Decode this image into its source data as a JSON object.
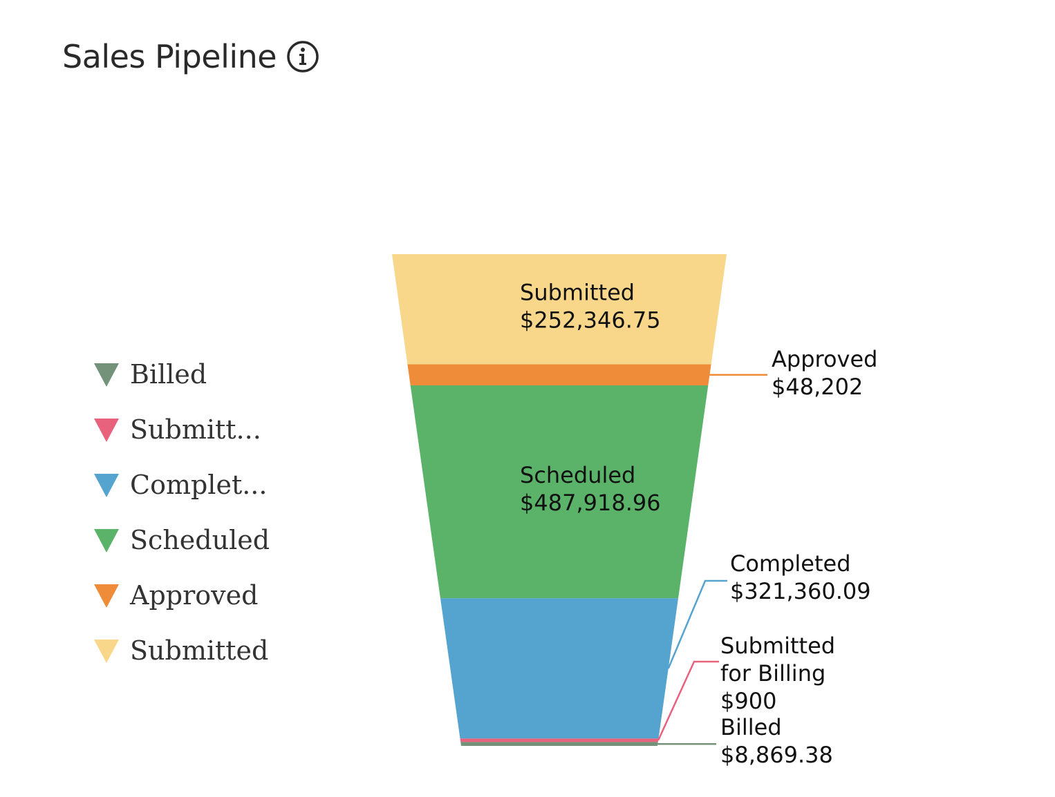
{
  "header": {
    "title": "Sales Pipeline",
    "info_icon": "info-circle-icon"
  },
  "legend": {
    "items": [
      {
        "label": "Billed",
        "color": "#74917a",
        "icon": "triangle-down-icon"
      },
      {
        "label": "Submitt...",
        "color": "#e8617d",
        "icon": "triangle-down-icon"
      },
      {
        "label": "Complet...",
        "color": "#55a3cf",
        "icon": "triangle-down-icon"
      },
      {
        "label": "Scheduled",
        "color": "#5bb369",
        "icon": "triangle-down-icon"
      },
      {
        "label": "Approved",
        "color": "#ee8c3a",
        "icon": "triangle-down-icon"
      },
      {
        "label": "Submitted",
        "color": "#f9d78a",
        "icon": "triangle-down-icon"
      }
    ]
  },
  "chart_data": {
    "type": "funnel",
    "title": "Sales Pipeline",
    "stages": [
      {
        "name": "Submitted",
        "label_lines": [
          "Submitted"
        ],
        "value": 252346.75,
        "value_label": "$252,346.75",
        "color": "#f9d78a",
        "label_position": "inside"
      },
      {
        "name": "Approved",
        "label_lines": [
          "Approved"
        ],
        "value": 48202,
        "value_label": "$48,202",
        "color": "#ee8c3a",
        "label_position": "outside"
      },
      {
        "name": "Scheduled",
        "label_lines": [
          "Scheduled"
        ],
        "value": 487918.96,
        "value_label": "$487,918.96",
        "color": "#5bb369",
        "label_position": "inside"
      },
      {
        "name": "Completed",
        "label_lines": [
          "Completed"
        ],
        "value": 321360.09,
        "value_label": "$321,360.09",
        "color": "#55a3cf",
        "label_position": "outside"
      },
      {
        "name": "Submitted for Billing",
        "label_lines": [
          "Submitted",
          "for Billing"
        ],
        "value": 900,
        "value_label": "$900",
        "color": "#e8617d",
        "label_position": "outside"
      },
      {
        "name": "Billed",
        "label_lines": [
          "Billed"
        ],
        "value": 8869.38,
        "value_label": "$8,869.38",
        "color": "#74917a",
        "label_position": "outside"
      }
    ]
  }
}
